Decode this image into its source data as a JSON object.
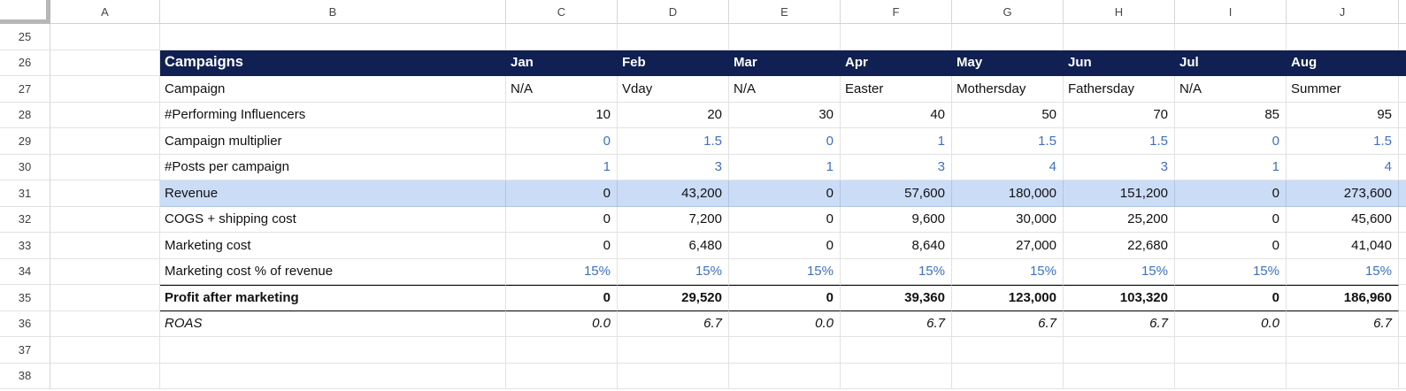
{
  "colors": {
    "header_fill": "#102052",
    "highlight_fill": "#cbdcf7",
    "input_text": "#3e6fbe",
    "grid_line": "#e2e2e2"
  },
  "grid": {
    "column_headers": [
      "A",
      "B",
      "C",
      "D",
      "E",
      "F",
      "G",
      "H",
      "I",
      "J"
    ],
    "rows": [
      {
        "num": "25"
      },
      {
        "num": "26",
        "kind": "title",
        "label": "Campaigns",
        "values": [
          "Jan",
          "Feb",
          "Mar",
          "Apr",
          "May",
          "Jun",
          "Jul",
          "Aug"
        ]
      },
      {
        "num": "27",
        "kind": "text",
        "label": "Campaign",
        "values": [
          "N/A",
          "Vday",
          "N/A",
          "Easter",
          "Mothersday",
          "Fathersday",
          "N/A",
          "Summer"
        ]
      },
      {
        "num": "28",
        "kind": "number",
        "label": "#Performing Influencers",
        "values": [
          "10",
          "20",
          "30",
          "40",
          "50",
          "70",
          "85",
          "95"
        ]
      },
      {
        "num": "29",
        "kind": "number",
        "label": "Campaign multiplier",
        "value_style": "blue",
        "values": [
          "0",
          "1.5",
          "0",
          "1",
          "1.5",
          "1.5",
          "0",
          "1.5"
        ]
      },
      {
        "num": "30",
        "kind": "number",
        "label": "#Posts per campaign",
        "value_style": "blue",
        "values": [
          "1",
          "3",
          "1",
          "3",
          "4",
          "3",
          "1",
          "4"
        ]
      },
      {
        "num": "31",
        "kind": "number",
        "label": "Revenue",
        "row_style": "highlight",
        "values": [
          "0",
          "43,200",
          "0",
          "57,600",
          "180,000",
          "151,200",
          "0",
          "273,600"
        ]
      },
      {
        "num": "32",
        "kind": "number",
        "label": "COGS + shipping cost",
        "values": [
          "0",
          "7,200",
          "0",
          "9,600",
          "30,000",
          "25,200",
          "0",
          "45,600"
        ]
      },
      {
        "num": "33",
        "kind": "number",
        "label": "Marketing cost",
        "values": [
          "0",
          "6,480",
          "0",
          "8,640",
          "27,000",
          "22,680",
          "0",
          "41,040"
        ]
      },
      {
        "num": "34",
        "kind": "number",
        "label": "Marketing cost % of revenue",
        "value_style": "blue",
        "values": [
          "15%",
          "15%",
          "15%",
          "15%",
          "15%",
          "15%",
          "15%",
          "15%"
        ]
      },
      {
        "num": "35",
        "kind": "number",
        "label": "Profit after marketing",
        "row_style": "total",
        "values": [
          "0",
          "29,520",
          "0",
          "39,360",
          "123,000",
          "103,320",
          "0",
          "186,960"
        ]
      },
      {
        "num": "36",
        "kind": "number",
        "label": "ROAS",
        "row_style": "italic",
        "values": [
          "0.0",
          "6.7",
          "0.0",
          "6.7",
          "6.7",
          "6.7",
          "0.0",
          "6.7"
        ]
      },
      {
        "num": "37"
      },
      {
        "num": "38"
      }
    ]
  }
}
